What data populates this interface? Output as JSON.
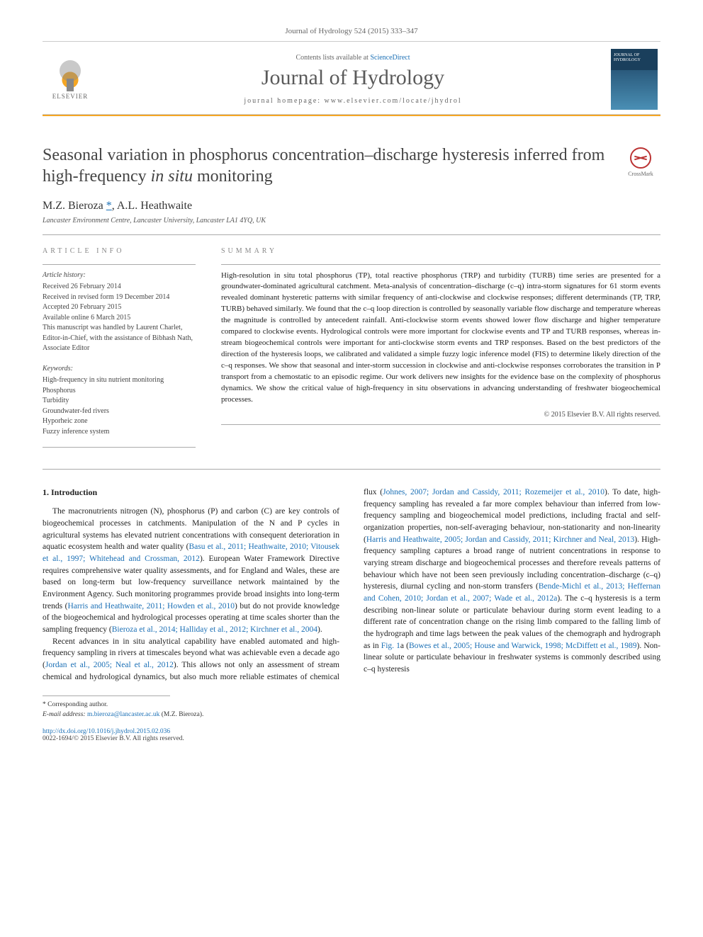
{
  "journal_ref": "Journal of Hydrology 524 (2015) 333–347",
  "header": {
    "publisher": "ELSEVIER",
    "contents_prefix": "Contents lists available at ",
    "contents_link": "ScienceDirect",
    "journal_name": "Journal of Hydrology",
    "homepage_prefix": "journal homepage: ",
    "homepage_url": "www.elsevier.com/locate/jhydrol",
    "cover_text": "JOURNAL OF HYDROLOGY"
  },
  "crossmark": "CrossMark",
  "title_pre": "Seasonal variation in phosphorus concentration–discharge hysteresis inferred from high-frequency ",
  "title_em": "in situ",
  "title_post": " monitoring",
  "authors": "M.Z. Bieroza *, A.L. Heathwaite",
  "affiliation": "Lancaster Environment Centre, Lancaster University, Lancaster LA1 4YQ, UK",
  "info": {
    "label": "article info",
    "history_label": "Article history:",
    "history": [
      "Received 26 February 2014",
      "Received in revised form 19 December 2014",
      "Accepted 20 February 2015",
      "Available online 6 March 2015",
      "This manuscript was handled by Laurent Charlet, Editor-in-Chief, with the assistance of Bibhash Nath, Associate Editor"
    ],
    "keywords_label": "Keywords:",
    "keywords": [
      "High-frequency in situ nutrient monitoring",
      "Phosphorus",
      "Turbidity",
      "Groundwater-fed rivers",
      "Hyporheic zone",
      "Fuzzy inference system"
    ]
  },
  "summary": {
    "label": "summary",
    "text": "High-resolution in situ total phosphorus (TP), total reactive phosphorus (TRP) and turbidity (TURB) time series are presented for a groundwater-dominated agricultural catchment. Meta-analysis of concentration–discharge (c–q) intra-storm signatures for 61 storm events revealed dominant hysteretic patterns with similar frequency of anti-clockwise and clockwise responses; different determinands (TP, TRP, TURB) behaved similarly. We found that the c–q loop direction is controlled by seasonally variable flow discharge and temperature whereas the magnitude is controlled by antecedent rainfall. Anti-clockwise storm events showed lower flow discharge and higher temperature compared to clockwise events. Hydrological controls were more important for clockwise events and TP and TURB responses, whereas in-stream biogeochemical controls were important for anti-clockwise storm events and TRP responses. Based on the best predictors of the direction of the hysteresis loops, we calibrated and validated a simple fuzzy logic inference model (FIS) to determine likely direction of the c–q responses. We show that seasonal and inter-storm succession in clockwise and anti-clockwise responses corroborates the transition in P transport from a chemostatic to an episodic regime. Our work delivers new insights for the evidence base on the complexity of phosphorus dynamics. We show the critical value of high-frequency in situ observations in advancing understanding of freshwater biogeochemical processes.",
    "copyright": "© 2015 Elsevier B.V. All rights reserved."
  },
  "body": {
    "heading": "1. Introduction",
    "p1a": "The macronutrients nitrogen (N), phosphorus (P) and carbon (C) are key controls of biogeochemical processes in catchments. Manipulation of the N and P cycles in agricultural systems has elevated nutrient concentrations with consequent deterioration in aquatic ecosystem health and water quality (",
    "p1_ref1": "Basu et al., 2011; Heathwaite, 2010; Vitousek et al., 1997; Whitehead and Crossman, 2012",
    "p1b": "). European Water Framework Directive requires comprehensive water quality assessments, and for England and Wales, these are based on long-term but low-frequency surveillance network maintained by the Environment Agency. Such monitoring programmes provide broad insights into long-term trends (",
    "p1_ref2": "Harris and Heathwaite, 2011; Howden et al., 2010",
    "p1c": ") but do not provide knowledge of the biogeochemical and hydrological processes operating at time scales shorter than the sampling frequency (",
    "p1_ref3": "Bieroza et al., 2014; Halliday et al., 2012; Kirchner et al., 2004",
    "p1d": ").",
    "p2a": "Recent advances in in situ analytical capability have enabled automated and high-frequency sampling in rivers at timescales beyond what was achievable even a decade ago (",
    "p2_ref1": "Jordan et al., 2005; Neal et al., 2012",
    "p2b": "). This allows not only an assessment of stream chemical and hydrological dynamics, but also much more reliable estimates of chemical flux (",
    "p2_ref2": "Johnes, 2007; Jordan and Cassidy, 2011; Rozemeijer et al., 2010",
    "p2c": "). To date, high-frequency sampling has revealed a far more complex behaviour than inferred from low-frequency sampling and biogeochemical model predictions, including fractal and self-organization properties, non-self-averaging behaviour, non-stationarity and non-linearity (",
    "p2_ref3": "Harris and Heathwaite, 2005; Jordan and Cassidy, 2011; Kirchner and Neal, 2013",
    "p2d": "). High-frequency sampling captures a broad range of nutrient concentrations in response to varying stream discharge and biogeochemical processes and therefore reveals patterns of behaviour which have not been seen previously including concentration–discharge (c–q) hysteresis, diurnal cycling and non-storm transfers (",
    "p2_ref4": "Bende-Michl et al., 2013; Heffernan and Cohen, 2010; Jordan et al., 2007; Wade et al., 2012a",
    "p2e": "). The c–q hysteresis is a term describing non-linear solute or particulate behaviour during storm event leading to a different rate of concentration change on the rising limb compared to the falling limb of the hydrograph and time lags between the peak values of the chemograph and hydrograph as in ",
    "p2_ref5": "Fig. 1",
    "p2f": "a (",
    "p2_ref6": "Bowes et al., 2005; House and Warwick, 1998; McDiffett et al., 1989",
    "p2g": "). Non-linear solute or particulate behaviour in freshwater systems is commonly described using c–q hysteresis"
  },
  "footnote": {
    "corr": "* Corresponding author.",
    "email_label": "E-mail address: ",
    "email": "m.bieroza@lancaster.ac.uk",
    "email_who": " (M.Z. Bieroza)."
  },
  "doi": {
    "url": "http://dx.doi.org/10.1016/j.jhydrol.2015.02.036",
    "issn": "0022-1694/© 2015 Elsevier B.V. All rights reserved."
  },
  "colors": {
    "link": "#1a6fb5",
    "accent": "#f5a623",
    "text": "#222222",
    "muted": "#666666",
    "rule": "#aaaaaa"
  }
}
